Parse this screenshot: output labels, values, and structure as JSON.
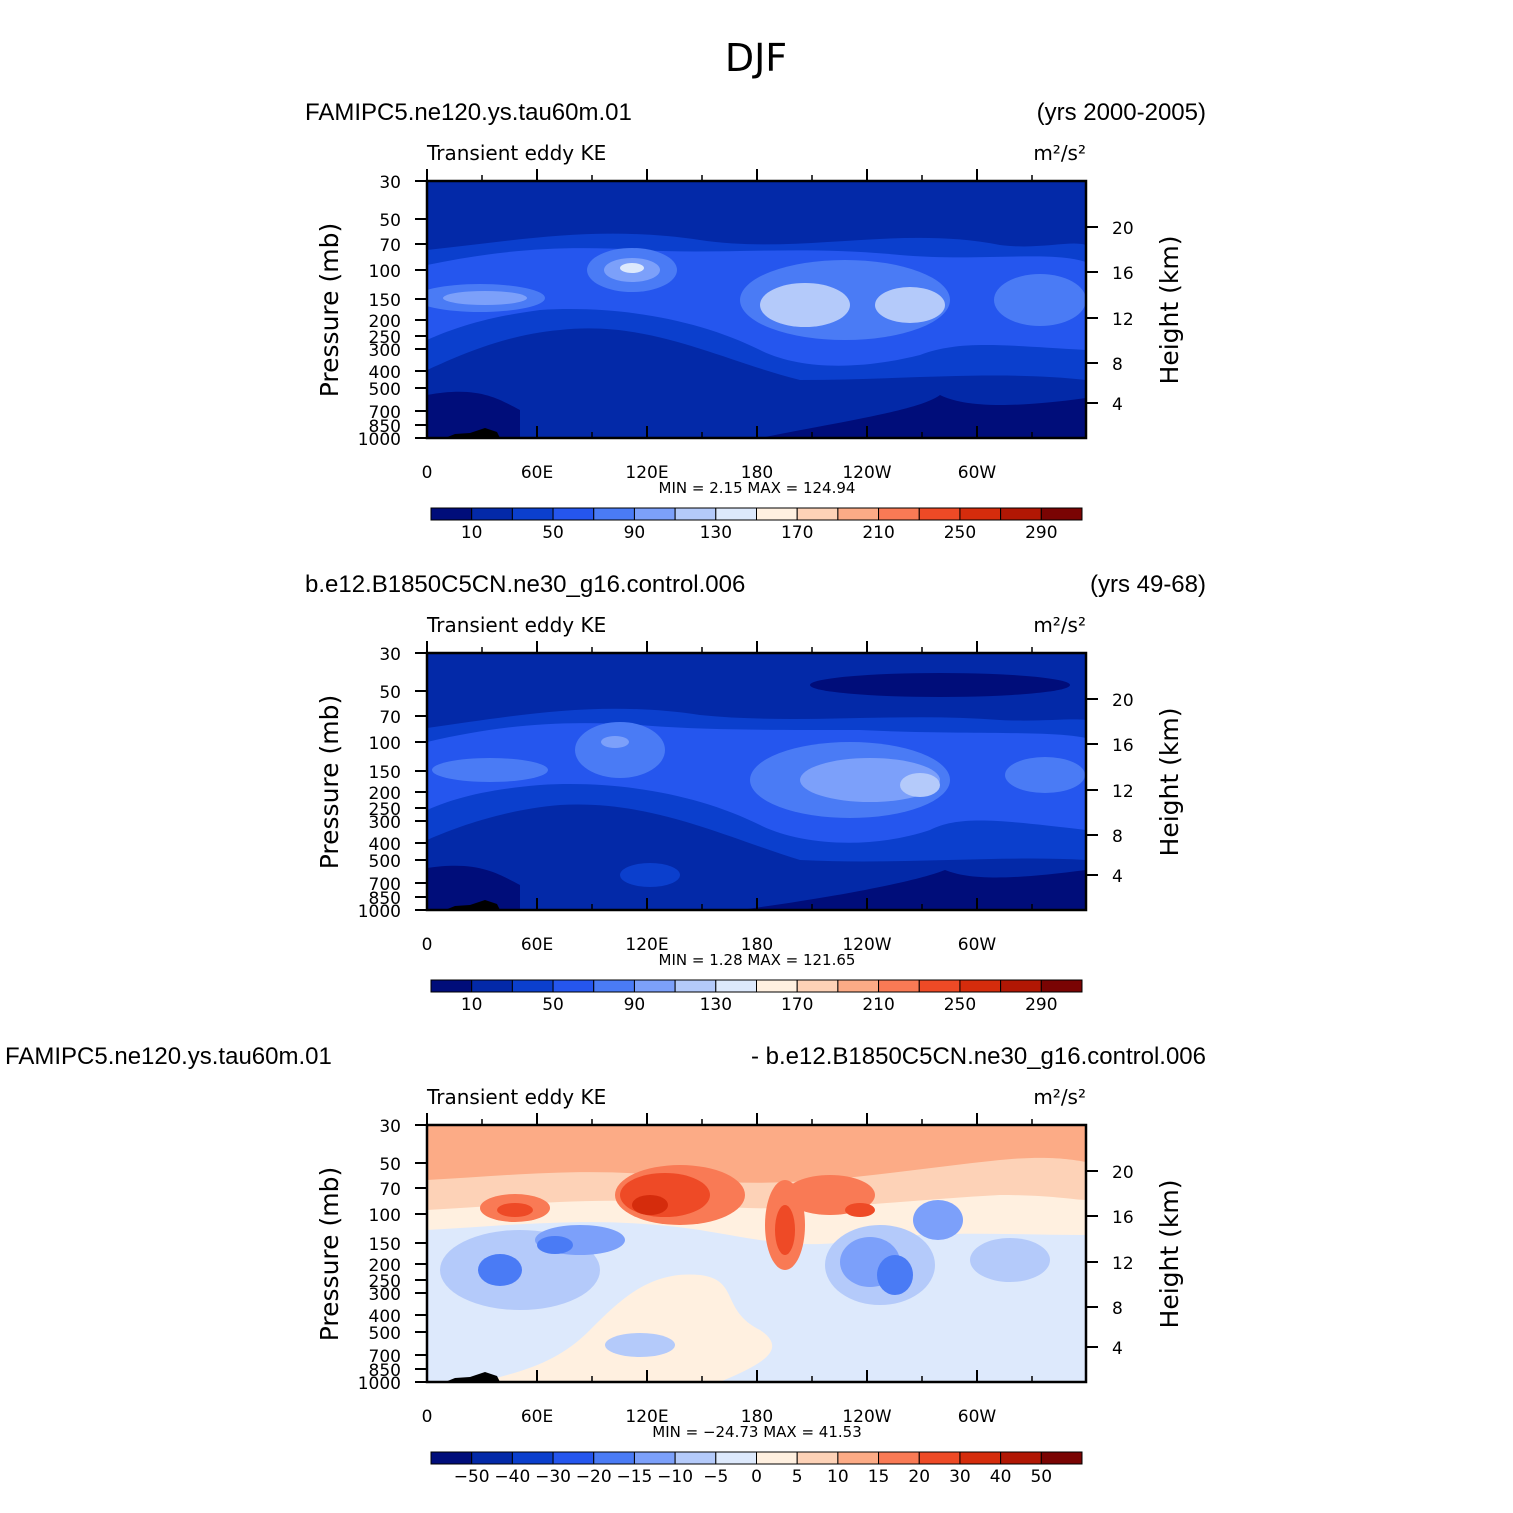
{
  "page_title": "DJF",
  "panels": [
    {
      "left_title": "FAMIPC5.ne120.ys.tau60m.01",
      "right_title": "(yrs 2000-2005)",
      "inner_left": "Transient eddy KE",
      "units": "m²/s²",
      "stats": "MIN =     2.15   MAX =  124.94"
    },
    {
      "left_title": "b.e12.B1850C5CN.ne30_g16.control.006",
      "right_title": "(yrs 49-68)",
      "inner_left": "Transient eddy KE",
      "units": "m²/s²",
      "stats": "MIN =     1.28   MAX =  121.65"
    },
    {
      "left_title": "FAMIPC5.ne120.ys.tau60m.01",
      "right_title": "- b.e12.B1850C5CN.ne30_g16.control.006",
      "inner_left": "Transient eddy KE",
      "units": "m²/s²",
      "stats": "MIN =  −24.73   MAX =    41.53"
    }
  ],
  "chart_data": [
    {
      "type": "heatmap",
      "title": "FAMIPC5.ne120.ys.tau60m.01",
      "subtitle": "Transient eddy KE",
      "units": "m2/s2",
      "period": "(yrs 2000-2005)",
      "ylabel": "Pressure (mb)",
      "y2label": "Height (km)",
      "x_ticks": [
        "0",
        "60E",
        "120E",
        "180",
        "120W",
        "60W"
      ],
      "y_ticks": [
        "30",
        "50",
        "70",
        "100",
        "150",
        "200",
        "250",
        "300",
        "400",
        "500",
        "700",
        "850",
        "1000"
      ],
      "y2_ticks": [
        "20",
        "16",
        "12",
        "8",
        "4"
      ],
      "min": 2.15,
      "max": 124.94,
      "colorbar_levels": [
        10,
        50,
        90,
        130,
        170,
        210,
        250,
        290
      ],
      "colorbar_colors": [
        "#000d7a",
        "#0329a8",
        "#0b3fcd",
        "#2556ee",
        "#4a7bf5",
        "#7ca0fa",
        "#b4cafa",
        "#dde9fc",
        "#fff0e0",
        "#fdd2b7",
        "#fcab86",
        "#f97a55",
        "#ee4a26",
        "#d52c0c",
        "#b11704",
        "#7a0403"
      ]
    },
    {
      "type": "heatmap",
      "title": "b.e12.B1850C5CN.ne30_g16.control.006",
      "subtitle": "Transient eddy KE",
      "units": "m2/s2",
      "period": "(yrs 49-68)",
      "ylabel": "Pressure (mb)",
      "y2label": "Height (km)",
      "x_ticks": [
        "0",
        "60E",
        "120E",
        "180",
        "120W",
        "60W"
      ],
      "y_ticks": [
        "30",
        "50",
        "70",
        "100",
        "150",
        "200",
        "250",
        "300",
        "400",
        "500",
        "700",
        "850",
        "1000"
      ],
      "y2_ticks": [
        "20",
        "16",
        "12",
        "8",
        "4"
      ],
      "min": 1.28,
      "max": 121.65,
      "colorbar_levels": [
        10,
        50,
        90,
        130,
        170,
        210,
        250,
        290
      ],
      "colorbar_colors": [
        "#000d7a",
        "#0329a8",
        "#0b3fcd",
        "#2556ee",
        "#4a7bf5",
        "#7ca0fa",
        "#b4cafa",
        "#dde9fc",
        "#fff0e0",
        "#fdd2b7",
        "#fcab86",
        "#f97a55",
        "#ee4a26",
        "#d52c0c",
        "#b11704",
        "#7a0403"
      ]
    },
    {
      "type": "heatmap",
      "title": "FAMIPC5.ne120.ys.tau60m.01 - b.e12.B1850C5CN.ne30_g16.control.006",
      "subtitle": "Transient eddy KE",
      "units": "m2/s2",
      "ylabel": "Pressure (mb)",
      "y2label": "Height (km)",
      "x_ticks": [
        "0",
        "60E",
        "120E",
        "180",
        "120W",
        "60W"
      ],
      "y_ticks": [
        "30",
        "50",
        "70",
        "100",
        "150",
        "200",
        "250",
        "300",
        "400",
        "500",
        "700",
        "850",
        "1000"
      ],
      "y2_ticks": [
        "20",
        "16",
        "12",
        "8",
        "4"
      ],
      "min": -24.73,
      "max": 41.53,
      "colorbar_levels": [
        "−50",
        "−40",
        "−30",
        "−20",
        "−15",
        "−10",
        "−5",
        "0",
        "5",
        "10",
        "15",
        "20",
        "30",
        "40",
        "50"
      ],
      "colorbar_colors": [
        "#000d7a",
        "#0329a8",
        "#0b3fcd",
        "#2556ee",
        "#4a7bf5",
        "#7ca0fa",
        "#b4cafa",
        "#dde9fc",
        "#fff0e0",
        "#fdd2b7",
        "#fcab86",
        "#f97a55",
        "#ee4a26",
        "#d52c0c",
        "#b11704",
        "#7a0403"
      ]
    }
  ]
}
